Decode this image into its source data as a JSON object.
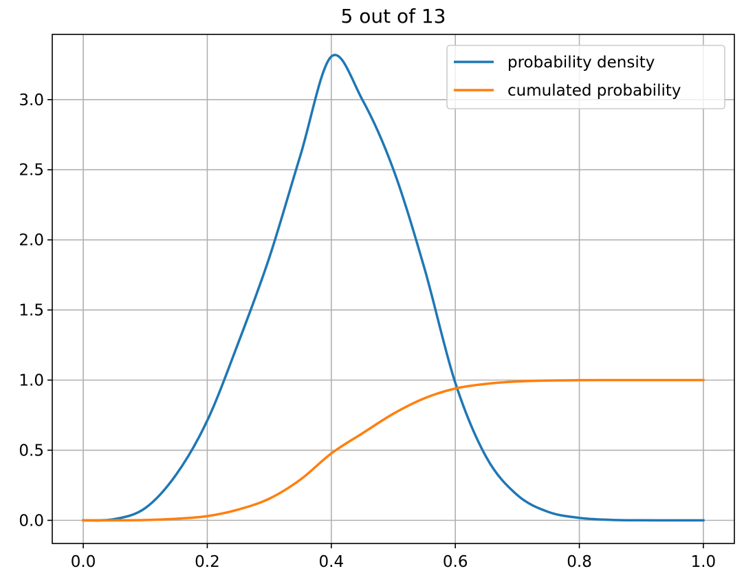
{
  "chart_data": {
    "type": "line",
    "title": "5 out of 13",
    "xlabel": "",
    "ylabel": "",
    "xlim": [
      -0.05,
      1.05
    ],
    "ylim": [
      -0.165,
      3.465
    ],
    "x_ticks": [
      0.0,
      0.2,
      0.4,
      0.6,
      0.8,
      1.0
    ],
    "x_tick_labels": [
      "0.0",
      "0.2",
      "0.4",
      "0.6",
      "0.8",
      "1.0"
    ],
    "y_ticks": [
      0.0,
      0.5,
      1.0,
      1.5,
      2.0,
      2.5,
      3.0
    ],
    "y_tick_labels": [
      "0.0",
      "0.5",
      "1.0",
      "1.5",
      "2.0",
      "2.5",
      "3.0"
    ],
    "grid": true,
    "legend_position": "top-right",
    "x": [
      0.0,
      0.05,
      0.1,
      0.15,
      0.2,
      0.25,
      0.3,
      0.35,
      0.4,
      0.45,
      0.5,
      0.55,
      0.6,
      0.65,
      0.7,
      0.75,
      0.8,
      0.85,
      0.9,
      0.95,
      1.0
    ],
    "series": [
      {
        "name": "probability density",
        "color": "#1f77b4",
        "values": [
          0.0,
          0.0084,
          0.0874,
          0.3274,
          0.7116,
          1.2658,
          1.8733,
          2.6,
          3.307,
          3.0,
          2.503,
          1.8,
          0.98,
          0.45,
          0.18,
          0.06,
          0.0175,
          0.0035,
          0.0004,
          0.0,
          0.0
        ]
      },
      {
        "name": "cumulated probability",
        "color": "#ff7f0e",
        "values": [
          0.0,
          0.0001,
          0.0023,
          0.0112,
          0.03,
          0.077,
          0.1545,
          0.29,
          0.477,
          0.62,
          0.76,
          0.87,
          0.94,
          0.973,
          0.99,
          0.997,
          0.9993,
          0.9999,
          1.0,
          1.0,
          1.0
        ]
      }
    ]
  }
}
